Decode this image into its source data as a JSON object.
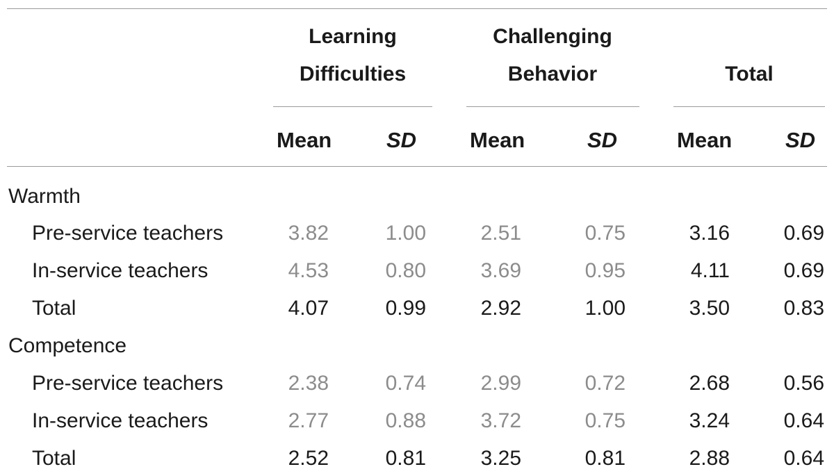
{
  "header": {
    "groups": [
      {
        "line1": "Learning",
        "line2": "Difficulties"
      },
      {
        "line1": "Challenging",
        "line2": "Behavior"
      },
      {
        "line1": "",
        "line2": "Total"
      }
    ],
    "sub": [
      "Mean",
      "SD",
      "Mean",
      "SD",
      "Mean",
      "SD"
    ]
  },
  "sections": [
    {
      "title": "Warmth",
      "rows": [
        {
          "label": "Pre-service teachers",
          "values": [
            "3.82",
            "1.00",
            "2.51",
            "0.75",
            "3.16",
            "0.69"
          ]
        },
        {
          "label": "In-service teachers",
          "values": [
            "4.53",
            "0.80",
            "3.69",
            "0.95",
            "4.11",
            "0.69"
          ]
        },
        {
          "label": "Total",
          "values": [
            "4.07",
            "0.99",
            "2.92",
            "1.00",
            "3.50",
            "0.83"
          ]
        }
      ]
    },
    {
      "title": "Competence",
      "rows": [
        {
          "label": "Pre-service teachers",
          "values": [
            "2.38",
            "0.74",
            "2.99",
            "0.72",
            "2.68",
            "0.56"
          ]
        },
        {
          "label": "In-service teachers",
          "values": [
            "2.77",
            "0.88",
            "3.72",
            "0.75",
            "3.24",
            "0.64"
          ]
        },
        {
          "label": "Total",
          "values": [
            "2.52",
            "0.81",
            "3.25",
            "0.81",
            "2.88",
            "0.64"
          ]
        }
      ]
    }
  ]
}
